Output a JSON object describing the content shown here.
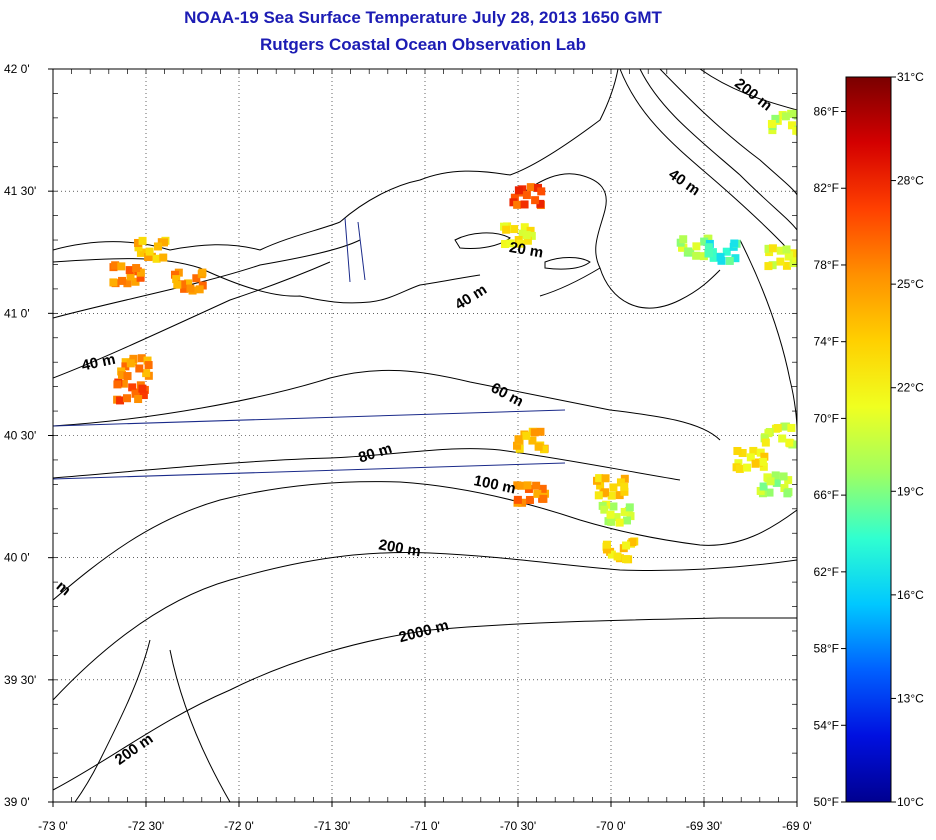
{
  "title": "NOAA-19 Sea Surface Temperature July 28, 2013 1650 GMT",
  "subtitle": "Rutgers Coastal Ocean Observation Lab",
  "map": {
    "lon_range": [
      -73.0,
      -69.0
    ],
    "lat_range": [
      39.0,
      42.0
    ],
    "lon_ticks": [
      {
        "value": -73.0,
        "label": "-73 0'"
      },
      {
        "value": -72.5,
        "label": "-72 30'"
      },
      {
        "value": -72.0,
        "label": "-72 0'"
      },
      {
        "value": -71.5,
        "label": "-71 30'"
      },
      {
        "value": -71.0,
        "label": "-71 0'"
      },
      {
        "value": -70.5,
        "label": "-70 30'"
      },
      {
        "value": -70.0,
        "label": "-70 0'"
      },
      {
        "value": -69.5,
        "label": "-69 30'"
      },
      {
        "value": -69.0,
        "label": "-69 0'"
      }
    ],
    "lat_ticks": [
      {
        "value": 42.0,
        "label": "42 0'"
      },
      {
        "value": 41.5,
        "label": "41 30'"
      },
      {
        "value": 41.0,
        "label": "41 0'"
      },
      {
        "value": 40.5,
        "label": "40 30'"
      },
      {
        "value": 40.0,
        "label": "40 0'"
      },
      {
        "value": 39.5,
        "label": "39 30'"
      },
      {
        "value": 39.0,
        "label": "39 0'"
      }
    ],
    "grid": "dotted",
    "contour_labels": [
      {
        "text": "200 m",
        "lon": -69.25,
        "lat": 41.88,
        "angle": 38
      },
      {
        "text": "40 m",
        "lon": -69.62,
        "lat": 41.52,
        "angle": 35
      },
      {
        "text": "20 m",
        "lon": -70.46,
        "lat": 41.24,
        "angle": 10
      },
      {
        "text": "40 m",
        "lon": -70.74,
        "lat": 41.05,
        "angle": -32
      },
      {
        "text": "40 m",
        "lon": -72.75,
        "lat": 40.78,
        "angle": -12
      },
      {
        "text": "60 m",
        "lon": -70.57,
        "lat": 40.65,
        "angle": 28
      },
      {
        "text": "80 m",
        "lon": -71.26,
        "lat": 40.41,
        "angle": -18
      },
      {
        "text": "100 m",
        "lon": -70.63,
        "lat": 40.28,
        "angle": 12
      },
      {
        "text": "200 m",
        "lon": -71.14,
        "lat": 40.02,
        "angle": 10
      },
      {
        "text": "2000 m",
        "lon": -71.0,
        "lat": 39.68,
        "angle": -15
      },
      {
        "text": "200 m",
        "lon": -72.55,
        "lat": 39.2,
        "angle": -35
      },
      {
        "text": "m",
        "lon": -72.96,
        "lat": 39.86,
        "angle": 40
      }
    ],
    "colors": {
      "land_outline": "#000000",
      "contour": "#000000",
      "track_line": "#1a2a8a"
    }
  },
  "colorbar": {
    "celsius_ticks": [
      {
        "value": 31,
        "label": "31°C"
      },
      {
        "value": 28,
        "label": "28°C"
      },
      {
        "value": 25,
        "label": "25°C"
      },
      {
        "value": 22,
        "label": "22°C"
      },
      {
        "value": 19,
        "label": "19°C"
      },
      {
        "value": 16,
        "label": "16°C"
      },
      {
        "value": 13,
        "label": "13°C"
      },
      {
        "value": 10,
        "label": "10°C"
      }
    ],
    "fahrenheit_ticks": [
      {
        "value": 86,
        "label": "86°F"
      },
      {
        "value": 82,
        "label": "82°F"
      },
      {
        "value": 78,
        "label": "78°F"
      },
      {
        "value": 74,
        "label": "74°F"
      },
      {
        "value": 70,
        "label": "70°F"
      },
      {
        "value": 66,
        "label": "66°F"
      },
      {
        "value": 62,
        "label": "62°F"
      },
      {
        "value": 58,
        "label": "58°F"
      },
      {
        "value": 54,
        "label": "54°F"
      },
      {
        "value": 50,
        "label": "50°F"
      }
    ],
    "range_c": [
      10,
      31
    ],
    "gradient_colors": [
      "#7a0000",
      "#d40000",
      "#ff4000",
      "#ff9000",
      "#ffd000",
      "#f0ff20",
      "#a0ff60",
      "#30ffd0",
      "#00c8ff",
      "#0060ff",
      "#0010e0",
      "#000090"
    ]
  },
  "sst_patches": [
    {
      "lon": -72.6,
      "lat": 41.16,
      "temp": 25.5
    },
    {
      "lon": -72.47,
      "lat": 41.26,
      "temp": 23.8
    },
    {
      "lon": -72.27,
      "lat": 41.13,
      "temp": 25.2
    },
    {
      "lon": -72.58,
      "lat": 40.68,
      "temp": 26.5
    },
    {
      "lon": -72.56,
      "lat": 40.78,
      "temp": 25.0
    },
    {
      "lon": -70.43,
      "lat": 40.48,
      "temp": 24.0
    },
    {
      "lon": -70.43,
      "lat": 40.26,
      "temp": 25.5
    },
    {
      "lon": -70.0,
      "lat": 40.29,
      "temp": 23.5
    },
    {
      "lon": -69.95,
      "lat": 40.03,
      "temp": 23.0
    },
    {
      "lon": -69.97,
      "lat": 40.18,
      "temp": 20.5
    },
    {
      "lon": -69.25,
      "lat": 40.4,
      "temp": 22.5
    },
    {
      "lon": -69.1,
      "lat": 40.5,
      "temp": 21.0
    },
    {
      "lon": -69.12,
      "lat": 40.3,
      "temp": 20.0
    },
    {
      "lon": -69.08,
      "lat": 41.23,
      "temp": 21.5
    },
    {
      "lon": -69.55,
      "lat": 41.27,
      "temp": 20.0
    },
    {
      "lon": -69.4,
      "lat": 41.25,
      "temp": 17.5
    },
    {
      "lon": -70.5,
      "lat": 41.32,
      "temp": 22.0
    },
    {
      "lon": -70.45,
      "lat": 41.48,
      "temp": 27.0
    },
    {
      "lon": -69.06,
      "lat": 41.78,
      "temp": 20.5
    }
  ]
}
